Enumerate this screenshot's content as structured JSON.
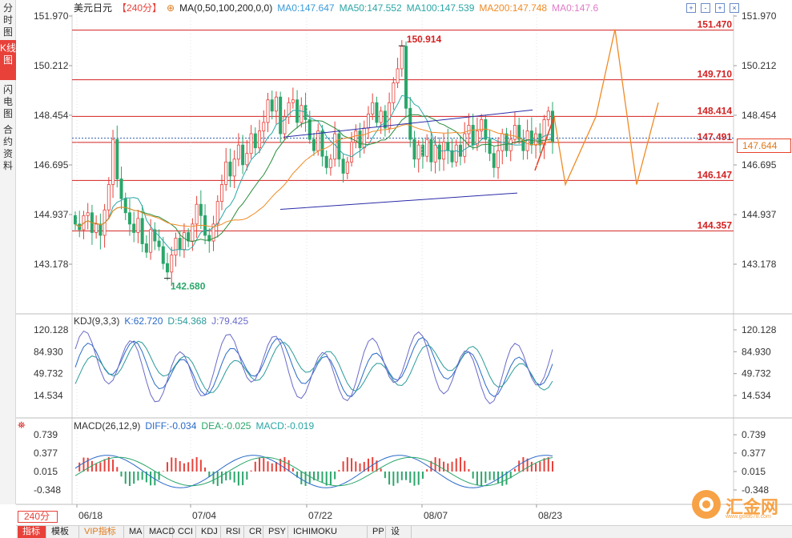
{
  "side_tabs": [
    {
      "label": "分时图",
      "active": false
    },
    {
      "label": "K线图",
      "active": true
    },
    {
      "label": "闪电图",
      "active": false
    },
    {
      "label": "合约资料",
      "active": false
    }
  ],
  "legend": {
    "title": "美元日元",
    "period": "【240分】",
    "ma_params": "MA(0,50,100,200,0,0)",
    "ma0": "MA0:147.647",
    "ma50": "MA50:147.552",
    "ma100": "MA100:147.539",
    "ma200": "MA200:147.748",
    "ma0b": "MA0:147.6"
  },
  "win_buttons": [
    "+",
    "-",
    "+",
    "×"
  ],
  "price_tag": "147.644",
  "kdj_legend": {
    "name": "KDJ(9,3,3)",
    "k": "K:62.720",
    "d": "D:54.368",
    "j": "J:79.425"
  },
  "macd_legend": {
    "name": "MACD(26,12,9)",
    "diff": "DIFF:-0.034",
    "dea": "DEA:-0.025",
    "macd": "MACD:-0.019"
  },
  "period_box": "240分",
  "bottom_bar": [
    {
      "label": "指标",
      "active": true
    },
    {
      "label": "模板",
      "active": false
    },
    {
      "label": "VIP指标",
      "active": false,
      "vip": true
    },
    {
      "label": "MA",
      "active": false
    },
    {
      "label": "MACD",
      "active": false
    },
    {
      "label": "CCI",
      "active": false
    },
    {
      "label": "KDJ",
      "active": false
    },
    {
      "label": "RSI",
      "active": false
    },
    {
      "label": "CR",
      "active": false
    },
    {
      "label": "PSY",
      "active": false
    },
    {
      "label": "ICHIMOKU CLOUD",
      "active": false
    },
    {
      "label": "PP",
      "active": false
    },
    {
      "label": "设置",
      "active": false
    }
  ],
  "watermark": {
    "text": "汇金网",
    "url": "www.gold678.com"
  },
  "colors": {
    "up": "#e8413a",
    "down": "#2aa66a",
    "ma50": "#2aa6a6",
    "ma100": "#2a8c3a",
    "ma200": "#f08a24",
    "level": "#d42020",
    "trend": "#2a2aa8",
    "forecast": "#f08a24",
    "k": "#2a6ac8",
    "d": "#2a9a9a",
    "j": "#6a6ac8"
  },
  "chart_data": [
    {
      "type": "candlestick",
      "title": "美元日元 240分",
      "x_ticks": [
        "06/18",
        "07/04",
        "07/22",
        "08/07",
        "08/23"
      ],
      "y_ticks": [
        "151.970",
        "150.212",
        "148.454",
        "146.695",
        "144.937",
        "143.178"
      ],
      "ylim": [
        141.0,
        152.5
      ],
      "horizontal_levels": [
        151.47,
        149.71,
        148.414,
        147.491,
        146.147,
        144.357
      ],
      "level_labels": [
        "151.470",
        "149.710",
        "148.414",
        "147.491",
        "146.147",
        "144.357"
      ],
      "dotted_level": 147.644,
      "annotations": [
        {
          "label": "150.914",
          "value": 150.914
        },
        {
          "label": "142.680",
          "value": 142.68
        }
      ],
      "close_series": [
        144.6,
        144.4,
        144.9,
        145.0,
        144.3,
        144.6,
        144.2,
        145.1,
        146.0,
        147.6,
        146.2,
        145.5,
        145.0,
        144.6,
        144.3,
        144.8,
        143.9,
        143.6,
        144.4,
        144.0,
        143.8,
        143.2,
        142.9,
        143.5,
        144.1,
        143.7,
        144.3,
        144.0,
        144.6,
        145.3,
        144.9,
        144.2,
        144.0,
        144.6,
        145.4,
        146.0,
        146.8,
        146.3,
        146.9,
        147.4,
        146.7,
        147.1,
        147.8,
        147.3,
        147.9,
        148.2,
        149.0,
        148.6,
        149.1,
        147.8,
        148.4,
        148.9,
        149.0,
        148.2,
        148.8,
        148.3,
        147.6,
        147.2,
        147.9,
        147.0,
        146.6,
        146.9,
        147.8,
        146.9,
        146.4,
        146.8,
        147.5,
        147.9,
        147.3,
        148.0,
        148.5,
        148.9,
        148.2,
        148.6,
        148.0,
        148.9,
        149.6,
        150.1,
        150.9,
        148.7,
        147.6,
        146.9,
        147.4,
        147.0,
        147.6,
        146.8,
        147.4,
        146.9,
        147.5,
        147.2,
        146.8,
        147.4,
        147.0,
        147.8,
        148.1,
        147.4,
        147.9,
        148.3,
        147.6,
        147.1,
        146.6,
        147.2,
        147.8,
        147.2,
        147.6,
        148.1,
        147.6,
        147.2,
        147.9,
        147.4,
        147.8,
        147.4,
        148.3,
        148.6,
        147.5
      ],
      "forecast_path": [
        {
          "x": "08/23",
          "y": 146.5
        },
        {
          "x": "",
          "y": 148.4
        },
        {
          "x": "",
          "y": 146.0
        },
        {
          "x": "",
          "y": 148.4
        },
        {
          "x": "",
          "y": 151.5
        },
        {
          "x": "",
          "y": 146.0
        },
        {
          "x": "",
          "y": 148.9
        }
      ]
    },
    {
      "type": "line",
      "title": "KDJ(9,3,3)",
      "y_ticks": [
        "120.128",
        "84.930",
        "49.732",
        "14.534"
      ],
      "series": [
        {
          "name": "K",
          "last": 62.72
        },
        {
          "name": "D",
          "last": 54.368
        },
        {
          "name": "J",
          "last": 79.425
        }
      ]
    },
    {
      "type": "bar",
      "title": "MACD(26,12,9)",
      "y_ticks": [
        "0.739",
        "0.377",
        "0.015",
        "-0.348"
      ],
      "series": [
        {
          "name": "DIFF",
          "last": -0.034
        },
        {
          "name": "DEA",
          "last": -0.025
        },
        {
          "name": "MACD",
          "last": -0.019
        }
      ]
    }
  ]
}
